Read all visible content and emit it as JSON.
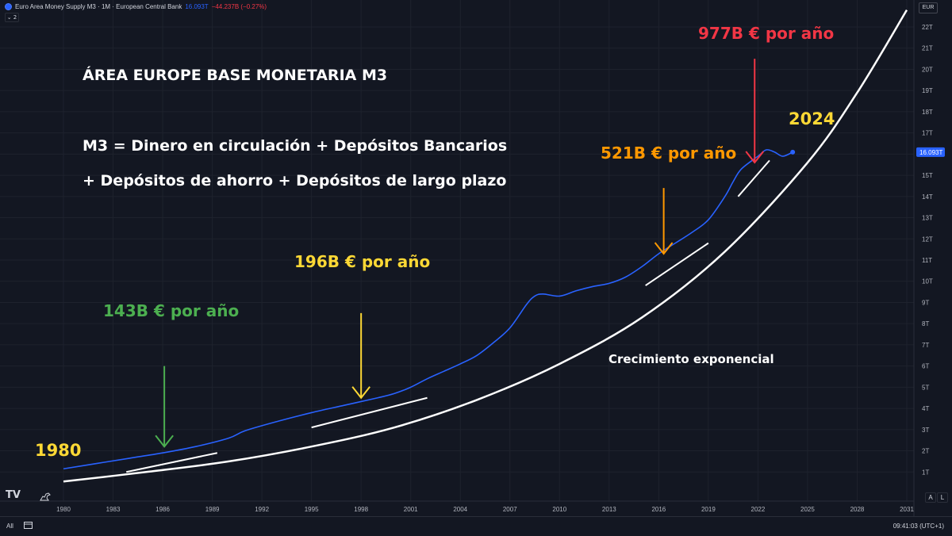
{
  "header": {
    "symbol_title": "Euro Area Money Supply M3 · 1M · European Central Bank",
    "last_value": "16.093T",
    "change": "−44.237B (−0.27%)",
    "collapse_label": "⌄ 2"
  },
  "currency_label": "EUR",
  "annotations": {
    "title": "ÁREA EUROPE BASE MONETARIA M3",
    "formula_line1": "M3 = Dinero en circulación + Depósitos Bancarios",
    "formula_line2": "+ Depósitos de ahorro + Depósitos de largo plazo",
    "rate_1980s": "143B € por año",
    "rate_1990s": "196B € por año",
    "rate_2010s": "521B € por año",
    "rate_2020s": "977B € por año",
    "year_start": "1980",
    "year_end": "2024",
    "curve_label": "Crecimiento exponencial"
  },
  "colors": {
    "background": "#131722",
    "series": "#2962ff",
    "green": "#4caf50",
    "yellow": "#fdd835",
    "orange": "#ff9800",
    "red": "#f23645",
    "curve": "#ffffff"
  },
  "bottom_bar": {
    "range_label": "All",
    "time_label": "09:41:03 (UTC+1)"
  },
  "chart_data": {
    "type": "line",
    "title": "",
    "xlabel": "",
    "ylabel": "",
    "x_ticks": [
      "1980",
      "1983",
      "1986",
      "1989",
      "1992",
      "1995",
      "1998",
      "2001",
      "2004",
      "2007",
      "2010",
      "2013",
      "2016",
      "2019",
      "2022",
      "2025",
      "2028",
      "2031"
    ],
    "y_ticks": [
      "1T",
      "2T",
      "3T",
      "4T",
      "5T",
      "6T",
      "7T",
      "8T",
      "9T",
      "10T",
      "11T",
      "12T",
      "13T",
      "14T",
      "15T",
      "16T",
      "17T",
      "18T",
      "19T",
      "20T",
      "21T",
      "22T"
    ],
    "ylim": [
      0,
      22.5
    ],
    "xlim": [
      1979.5,
      2031.5
    ],
    "last_value_label": "16.093T",
    "grid": true,
    "series": [
      {
        "values_unit": "trillion EUR",
        "x": [
          1980,
          1982,
          1984,
          1986,
          1988,
          1990,
          1991,
          1993,
          1995,
          1997,
          1999,
          2000,
          2001,
          2002,
          2003,
          2004,
          2005,
          2006,
          2007,
          2008,
          2008.5,
          2009,
          2010,
          2011,
          2012,
          2013,
          2014,
          2015,
          2016,
          2017,
          2018,
          2019,
          2020,
          2020.5,
          2021,
          2022,
          2022.5,
          2023,
          2023.5,
          2024.1
        ],
        "y": [
          1.15,
          1.4,
          1.65,
          1.9,
          2.2,
          2.6,
          2.95,
          3.4,
          3.8,
          4.15,
          4.5,
          4.7,
          5.0,
          5.4,
          5.75,
          6.1,
          6.5,
          7.1,
          7.8,
          8.9,
          9.3,
          9.4,
          9.3,
          9.55,
          9.75,
          9.9,
          10.2,
          10.7,
          11.3,
          11.8,
          12.3,
          12.9,
          14.0,
          14.7,
          15.3,
          15.9,
          16.2,
          16.1,
          15.9,
          16.093
        ]
      }
    ],
    "trend_curve": {
      "x": [
        1980,
        1985,
        1990,
        1995,
        2000,
        2005,
        2010,
        2015,
        2020,
        2025,
        2028,
        2031
      ],
      "y": [
        0.55,
        1.0,
        1.5,
        2.2,
        3.1,
        4.4,
        6.1,
        8.3,
        11.4,
        15.6,
        18.9,
        22.8
      ]
    },
    "local_trend_lines": [
      {
        "x": [
          1983.8,
          1989.3
        ],
        "y": [
          1.0,
          1.9
        ]
      },
      {
        "x": [
          1995,
          2002
        ],
        "y": [
          3.1,
          4.5
        ]
      },
      {
        "x": [
          2015.2,
          2019
        ],
        "y": [
          9.8,
          11.8
        ]
      },
      {
        "x": [
          2020.8,
          2022.7
        ],
        "y": [
          14.0,
          15.7
        ]
      }
    ],
    "arrows": [
      {
        "color_key": "green",
        "x": 1986.1,
        "y_from": 6.0,
        "y_to": 2.2
      },
      {
        "color_key": "yellow",
        "x": 1998.0,
        "y_from": 8.5,
        "y_to": 4.5
      },
      {
        "color_key": "orange",
        "x": 2016.3,
        "y_from": 14.4,
        "y_to": 11.3
      },
      {
        "color_key": "red",
        "x": 2021.8,
        "y_from": 20.5,
        "y_to": 15.6
      }
    ]
  }
}
